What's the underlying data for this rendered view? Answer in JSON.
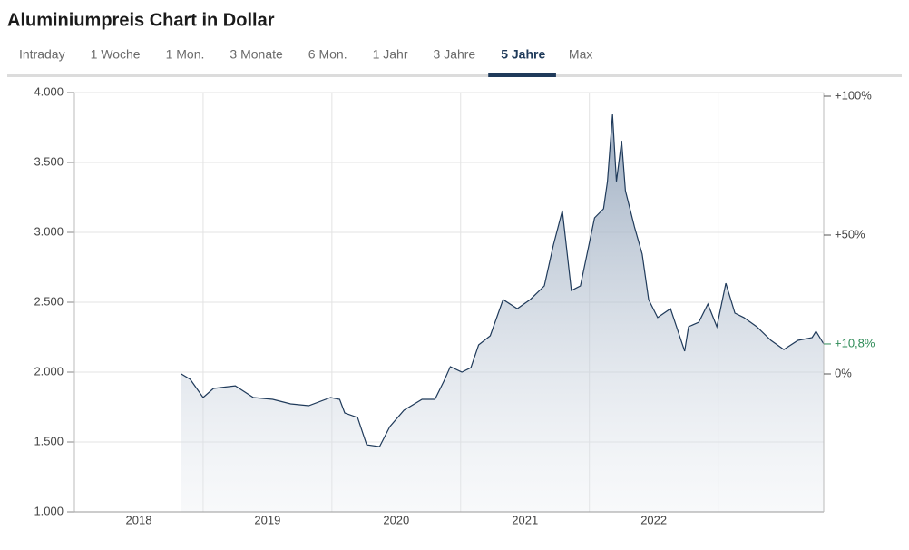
{
  "tabs": [
    {
      "label": "Intraday",
      "active": false
    },
    {
      "label": "1 Woche",
      "active": false
    },
    {
      "label": "1 Mon.",
      "active": false
    },
    {
      "label": "3 Monate",
      "active": false
    },
    {
      "label": "6 Mon.",
      "active": false
    },
    {
      "label": "1 Jahr",
      "active": false
    },
    {
      "label": "3 Jahre",
      "active": false
    },
    {
      "label": "5 Jahre",
      "active": true
    },
    {
      "label": "Max",
      "active": false
    }
  ],
  "chart_data": {
    "type": "area",
    "title": "Aluminiumpreis Chart in Dollar",
    "x": [
      2018.83,
      2018.9,
      2019.0,
      2019.08,
      2019.25,
      2019.39,
      2019.54,
      2019.68,
      2019.82,
      2019.99,
      2020.06,
      2020.1,
      2020.2,
      2020.27,
      2020.37,
      2020.45,
      2020.56,
      2020.7,
      2020.8,
      2020.87,
      2020.92,
      2021.01,
      2021.08,
      2021.14,
      2021.23,
      2021.33,
      2021.44,
      2021.54,
      2021.65,
      2021.72,
      2021.79,
      2021.86,
      2021.93,
      2022.04,
      2022.11,
      2022.14,
      2022.18,
      2022.21,
      2022.25,
      2022.28,
      2022.35,
      2022.41,
      2022.46,
      2022.53,
      2022.63,
      2022.74,
      2022.77,
      2022.85,
      2022.92,
      2022.99,
      2023.06,
      2023.13,
      2023.2,
      2023.3,
      2023.41,
      2023.51,
      2023.62,
      2023.73,
      2023.76,
      2023.82
    ],
    "series": [
      {
        "name": "Aluminiumpreis",
        "color": "#1f3a5a",
        "values": [
          1987,
          1948,
          1818,
          1883,
          1902,
          1818,
          1805,
          1773,
          1760,
          1818,
          1805,
          1708,
          1675,
          1480,
          1467,
          1610,
          1727,
          1805,
          1805,
          1935,
          2039,
          2000,
          2032,
          2195,
          2260,
          2519,
          2454,
          2519,
          2617,
          2909,
          3156,
          2584,
          2617,
          3104,
          3169,
          3364,
          3844,
          3364,
          3656,
          3299,
          3039,
          2844,
          2519,
          2390,
          2454,
          2150,
          2325,
          2357,
          2487,
          2325,
          2636,
          2422,
          2390,
          2325,
          2227,
          2162,
          2227,
          2247,
          2292,
          2201
        ]
      }
    ],
    "xlim": [
      2018.0,
      2023.82
    ],
    "xticks": [
      {
        "value": 2018.5,
        "label": "2018"
      },
      {
        "value": 2019.5,
        "label": "2019"
      },
      {
        "value": 2020.5,
        "label": "2020"
      },
      {
        "value": 2021.5,
        "label": "2021"
      },
      {
        "value": 2022.5,
        "label": "2022"
      }
    ],
    "xgrid": [
      2019,
      2020,
      2021,
      2022,
      2023
    ],
    "ylim": [
      1000,
      4000
    ],
    "yticks": [
      {
        "value": 1000,
        "label": "1.000"
      },
      {
        "value": 1500,
        "label": "1.500"
      },
      {
        "value": 2000,
        "label": "2.000"
      },
      {
        "value": 2500,
        "label": "2.500"
      },
      {
        "value": 3000,
        "label": "3.000"
      },
      {
        "value": 3500,
        "label": "3.500"
      },
      {
        "value": 4000,
        "label": "4.000"
      }
    ],
    "y2lim": [
      -49.67,
      101.31
    ],
    "y2ticks": [
      {
        "value": 0,
        "label": "0%"
      },
      {
        "value": 50,
        "label": "+50%"
      },
      {
        "value": 100,
        "label": "+100%"
      }
    ],
    "last_change": {
      "value": 10.8,
      "label": "+10,8%",
      "color": "#2e8b57"
    },
    "grid": true
  }
}
